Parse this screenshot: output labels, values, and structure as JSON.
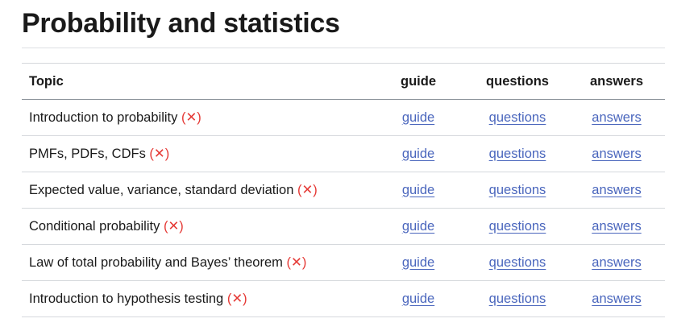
{
  "title": "Probability and statistics",
  "headers": {
    "topic": "Topic",
    "guide": "guide",
    "questions": "questions",
    "answers": "answers"
  },
  "status_marker": "(✕)",
  "colors": {
    "link": "#4a66bd",
    "marker": "#e53935"
  },
  "rows": [
    {
      "topic": "Introduction to probability",
      "guide": "guide",
      "questions": "questions",
      "answers": "answers"
    },
    {
      "topic": "PMFs, PDFs, CDFs",
      "guide": "guide",
      "questions": "questions",
      "answers": "answers"
    },
    {
      "topic": "Expected value, variance, standard deviation",
      "guide": "guide",
      "questions": "questions",
      "answers": "answers"
    },
    {
      "topic": "Conditional probability",
      "guide": "guide",
      "questions": "questions",
      "answers": "answers"
    },
    {
      "topic": "Law of total probability and Bayes’ theorem",
      "guide": "guide",
      "questions": "questions",
      "answers": "answers"
    },
    {
      "topic": "Introduction to hypothesis testing",
      "guide": "guide",
      "questions": "questions",
      "answers": "answers"
    }
  ]
}
